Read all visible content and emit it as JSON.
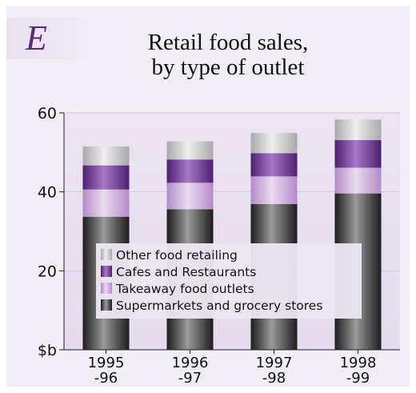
{
  "badge": "E",
  "chart_data": {
    "type": "bar",
    "stacked": true,
    "title": [
      "Retail food sales,",
      "by type of outlet"
    ],
    "categories": [
      [
        "1995",
        "-96"
      ],
      [
        "1996",
        "-97"
      ],
      [
        "1997",
        "-98"
      ],
      [
        "1998",
        "-99"
      ]
    ],
    "ylim": [
      0,
      60
    ],
    "yticks": [
      {
        "value": 60,
        "label": "60"
      },
      {
        "value": 40,
        "label": "40"
      },
      {
        "value": 20,
        "label": "20"
      },
      {
        "value": 0,
        "label": "$b"
      }
    ],
    "grid": true,
    "legend_position": "lower-left",
    "series": [
      {
        "name": "Supermarkets and grocery stores",
        "values": [
          33.7,
          35.6,
          36.9,
          39.6
        ],
        "color": "#3a3a3a"
      },
      {
        "name": "Takeaway food outlets",
        "values": [
          6.9,
          6.7,
          7.0,
          6.5
        ],
        "color": "#c5a3d6"
      },
      {
        "name": "Cafes and Restaurants",
        "values": [
          6.1,
          5.9,
          5.9,
          7.0
        ],
        "color": "#6e3594"
      },
      {
        "name": "Other food retailing",
        "values": [
          4.8,
          4.6,
          5.1,
          5.2
        ],
        "color": "#bdbdbd"
      }
    ],
    "legend_order": [
      3,
      2,
      1,
      0
    ]
  }
}
